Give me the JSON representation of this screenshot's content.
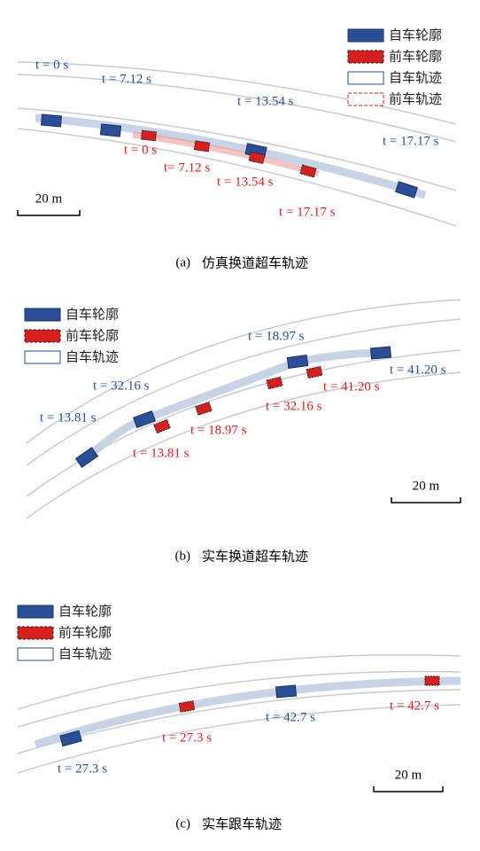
{
  "panels": [
    {
      "legend": [
        "自车轮廓",
        "前车轮廓",
        "自车轨迹",
        "前车轨迹"
      ],
      "ego_times": [
        "t = 0 s",
        "t = 7.12 s",
        "t = 13.54 s",
        "t = 17.17 s"
      ],
      "lead_times": [
        "t = 0 s",
        "t= 7.12 s",
        "t = 13.54 s",
        "t = 17.17 s"
      ],
      "scale": "20 m",
      "caption_label": "(a)",
      "caption": "仿真换道超车轨迹"
    },
    {
      "legend": [
        "自车轮廓",
        "前车轮廓",
        "自车轨迹"
      ],
      "ego_times": [
        "t = 13.81 s",
        "t = 32.16 s",
        "t = 18.97 s",
        "t = 41.20 s"
      ],
      "lead_times": [
        "t = 13.81 s",
        "t = 18.97 s",
        "t = 32.16 s",
        "t = 41.20 s"
      ],
      "scale": "20 m",
      "caption_label": "(b)",
      "caption": "实车换道超车轨迹"
    },
    {
      "legend": [
        "自车轮廓",
        "前车轮廓",
        "自车轨迹"
      ],
      "ego_times": [
        "t = 27.3 s",
        "t = 42.7 s"
      ],
      "lead_times": [
        "t = 27.3 s",
        "t = 42.7 s"
      ],
      "scale": "20 m",
      "caption_label": "(c)",
      "caption": "实车跟车轨迹"
    }
  ]
}
